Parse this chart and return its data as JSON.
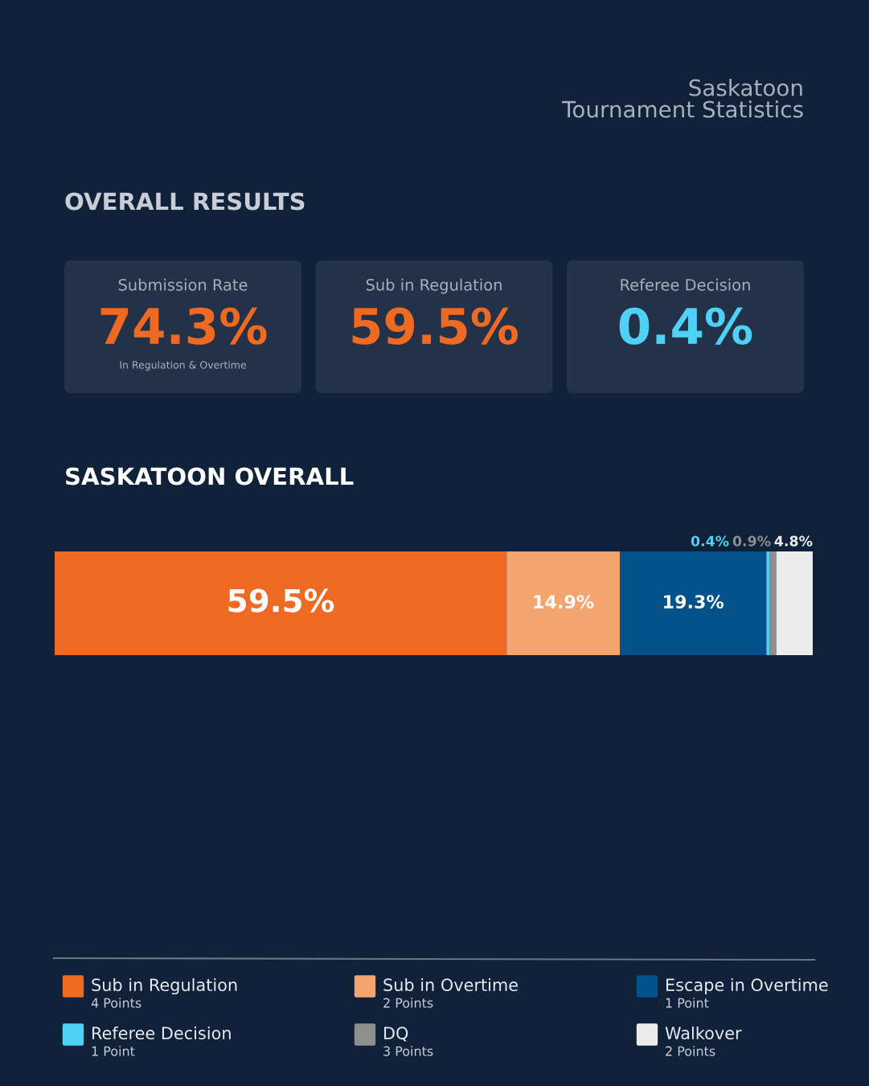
{
  "chart_data": [
    {
      "type": "other",
      "title": "OVERALL RESULTS",
      "subtitle": "Saskatoon\nTournament Statistics",
      "categories": [
        "Submission Rate",
        "Sub in Regulation",
        "Referee Decision"
      ],
      "annotations": [
        "74.3%",
        "59.5%",
        "0.4%",
        "In Regulation & Overtime"
      ]
    },
    {
      "type": "bar",
      "orientation": "horizontal",
      "stacked": true,
      "title": "SASKATOON OVERALL",
      "categories": [
        null
      ],
      "tick_labels": false,
      "legend": "bottom",
      "data_labels": true,
      "series": [
        {
          "name": "Sub in Regulation",
          "color": "#ee6a22",
          "values": [
            59.5
          ],
          "value_labels": [
            "59.5%"
          ]
        },
        {
          "name": "Sub in Overtime",
          "color": "#f4a56e",
          "values": [
            14.9
          ],
          "value_labels": [
            "14.9%"
          ]
        },
        {
          "name": "Escape in Overtime",
          "color": "#03528b",
          "values": [
            19.3
          ],
          "value_labels": [
            "19.3%"
          ]
        },
        {
          "name": "Referee Decision",
          "color": "#4fd0f5",
          "values": [
            0.4
          ],
          "value_labels": [
            "0.4%"
          ]
        },
        {
          "name": "DQ",
          "color": "#8e8e8e",
          "values": [
            0.9
          ],
          "value_labels": [
            "0.9%"
          ]
        },
        {
          "name": "Walkover",
          "color": "#ececec",
          "values": [
            4.8
          ],
          "value_labels": [
            "4.8%"
          ]
        }
      ],
      "annotations": [
        "4 Points",
        "2 Points",
        "1 Point",
        "1 Point",
        "3 Points",
        "2 Points"
      ]
    }
  ]
}
